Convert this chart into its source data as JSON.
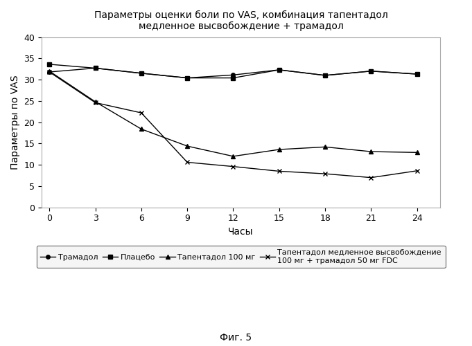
{
  "title_line1": "Параметры оценки боли по VAS, комбинация тапентадол",
  "title_line2": "медленное высвобождение + трамадол",
  "xlabel": "Часы",
  "ylabel": "Параметры по VAS",
  "x": [
    0,
    3,
    6,
    9,
    12,
    15,
    18,
    21,
    24
  ],
  "tramadol": [
    31.8,
    32.7,
    31.5,
    30.4,
    31.1,
    32.3,
    31.0,
    32.0,
    31.3
  ],
  "placebo": [
    33.6,
    32.7,
    31.5,
    30.4,
    30.4,
    32.3,
    31.0,
    32.0,
    31.3
  ],
  "tapentadol100": [
    32.0,
    24.8,
    18.4,
    14.4,
    12.0,
    13.6,
    14.2,
    13.1,
    12.9
  ],
  "tapentadol_fdc": [
    31.8,
    24.6,
    22.2,
    10.6,
    9.6,
    8.5,
    7.9,
    7.0,
    8.6
  ],
  "ylim": [
    0,
    40
  ],
  "yticks": [
    0.0,
    5.0,
    10.0,
    15.0,
    20.0,
    25.0,
    30.0,
    35.0,
    40.0
  ],
  "xticks": [
    0,
    3,
    6,
    9,
    12,
    15,
    18,
    21,
    24
  ],
  "legend_labels": [
    "Трамадол",
    "Плацебо",
    "Тапентадол 100 мг",
    "Тапентадол медленное высвобождение\n100 мг + трамадол 50 мг FDC"
  ],
  "fig_caption": "Фиг. 5",
  "bg_color": "#ffffff"
}
